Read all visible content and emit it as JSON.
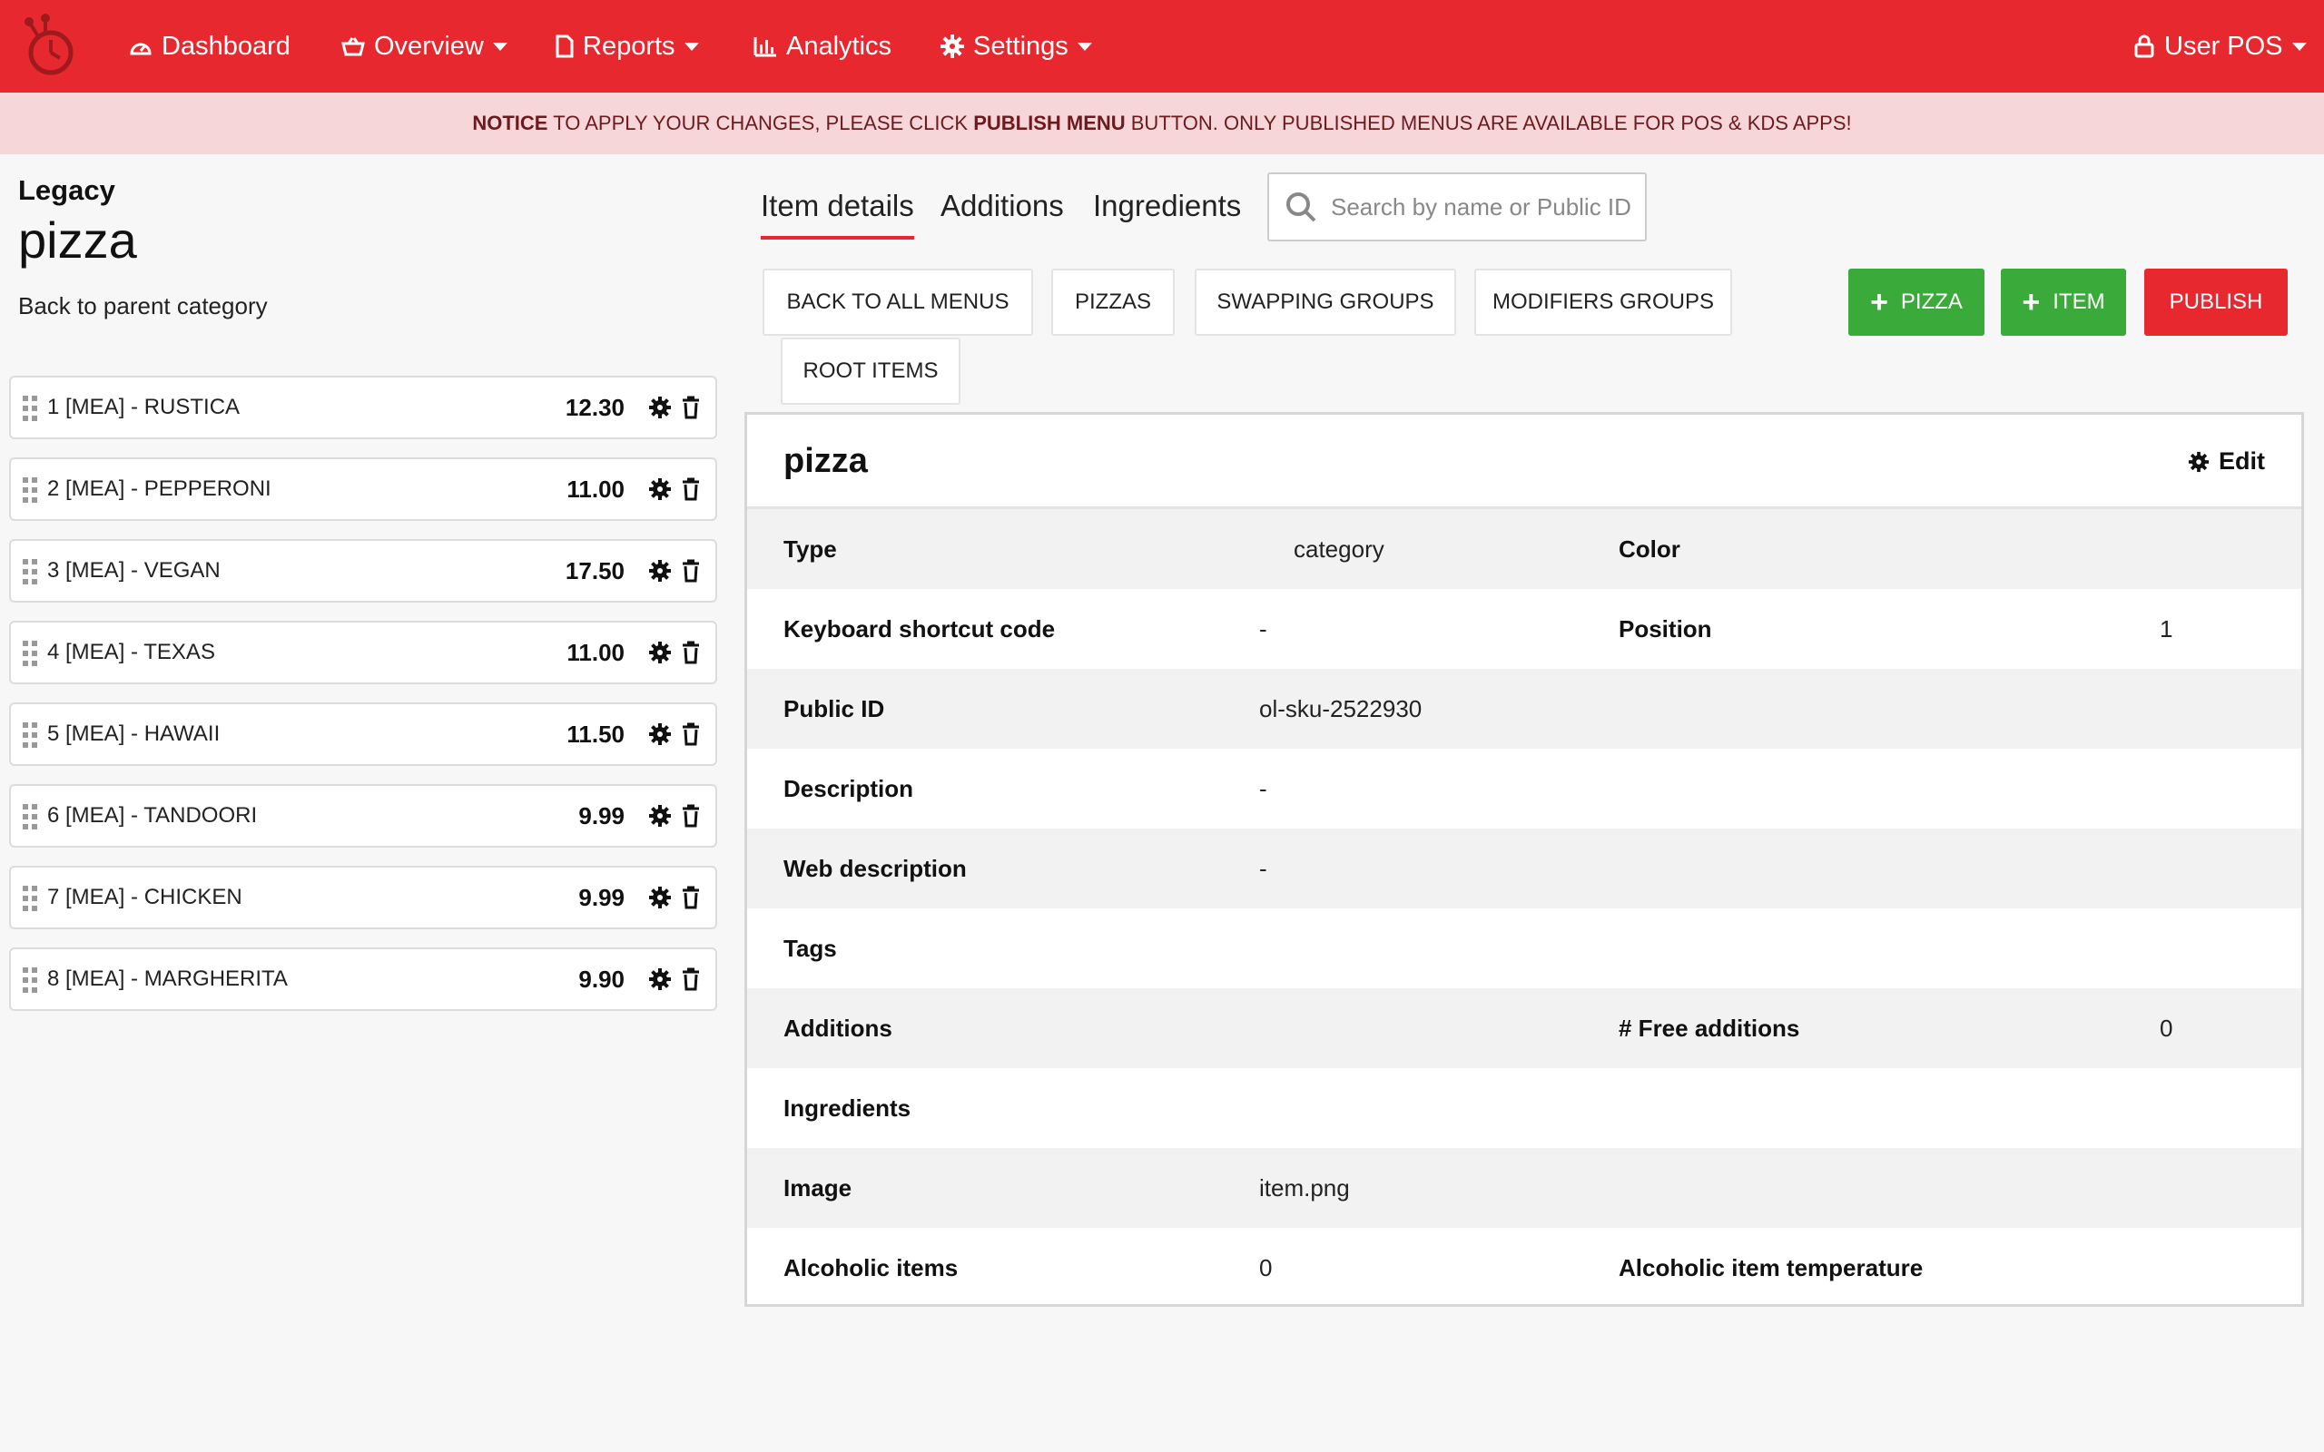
{
  "nav": {
    "items": [
      {
        "label": "Dashboard",
        "icon": "dashboard-icon",
        "has_caret": false
      },
      {
        "label": "Overview",
        "icon": "basket-icon",
        "has_caret": true
      },
      {
        "label": "Reports",
        "icon": "document-icon",
        "has_caret": true
      },
      {
        "label": "Analytics",
        "icon": "bar-chart-icon",
        "has_caret": false
      },
      {
        "label": "Settings",
        "icon": "gear-icon",
        "has_caret": true
      }
    ],
    "user": "User POS"
  },
  "notice": {
    "prefix": "NOTICE",
    "text1": " TO APPLY YOUR CHANGES, PLEASE CLICK ",
    "emph": "PUBLISH MENU",
    "text2": " BUTTON. ONLY PUBLISHED MENUS ARE AVAILABLE FOR POS & KDS APPS!"
  },
  "left": {
    "subtitle": "Legacy",
    "title": "pizza",
    "back": "Back to parent category",
    "items": [
      {
        "name": "1 [MEA] - RUSTICA",
        "price": "12.30"
      },
      {
        "name": "2 [MEA] - PEPPERONI",
        "price": "11.00"
      },
      {
        "name": "3 [MEA] - VEGAN",
        "price": "17.50"
      },
      {
        "name": "4 [MEA] - TEXAS",
        "price": "11.00"
      },
      {
        "name": "5 [MEA] - HAWAII",
        "price": "11.50"
      },
      {
        "name": "6 [MEA] - TANDOORI",
        "price": "9.99"
      },
      {
        "name": "7 [MEA] - CHICKEN",
        "price": "9.99"
      },
      {
        "name": "8 [MEA] - MARGHERITA",
        "price": "9.90"
      }
    ]
  },
  "tabs": [
    "Item details",
    "Additions",
    "Ingredients"
  ],
  "search": {
    "placeholder": "Search by name or Public ID"
  },
  "buttons": {
    "back_all": "BACK TO ALL MENUS",
    "pizzas": "PIZZAS",
    "swapping": "SWAPPING GROUPS",
    "modifiers": "MODIFIERS GROUPS",
    "root": "ROOT ITEMS",
    "add_pizza": "PIZZA",
    "add_item": "ITEM",
    "publish": "PUBLISH"
  },
  "details": {
    "title": "pizza",
    "edit": "Edit",
    "rows": [
      {
        "l1": "Type",
        "v1": "category",
        "l2": "Color",
        "v2": ""
      },
      {
        "l1": "Keyboard shortcut code",
        "v1": "-",
        "l2": "Position",
        "v2": "1"
      },
      {
        "l1": "Public ID",
        "v1": "ol-sku-2522930",
        "l2": "",
        "v2": ""
      },
      {
        "l1": "Description",
        "v1": "-",
        "l2": "",
        "v2": ""
      },
      {
        "l1": "Web description",
        "v1": "-",
        "l2": "",
        "v2": ""
      },
      {
        "l1": "Tags",
        "v1": "",
        "l2": "",
        "v2": ""
      },
      {
        "l1": "Additions",
        "v1": "",
        "l2": "# Free additions",
        "v2": "0"
      },
      {
        "l1": "Ingredients",
        "v1": "",
        "l2": "",
        "v2": ""
      },
      {
        "l1": "Image",
        "v1": "item.png",
        "l2": "",
        "v2": ""
      },
      {
        "l1": "Alcoholic items",
        "v1": "0",
        "l2": "Alcoholic item temperature",
        "v2": ""
      }
    ]
  },
  "colors": {
    "brand_red": "#e8282f",
    "green": "#3aaa3a",
    "notice_bg": "#f6d6d8"
  }
}
